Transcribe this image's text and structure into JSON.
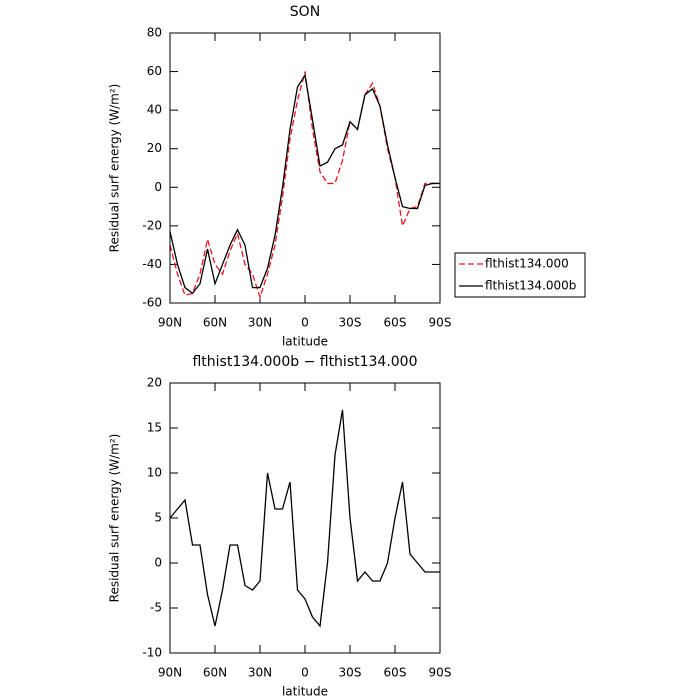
{
  "chart_data": [
    {
      "type": "line",
      "title": "SON",
      "xlabel": "latitude",
      "ylabel": "Residual surf energy (W/m²)",
      "x": [
        90,
        85,
        80,
        75,
        70,
        65,
        60,
        55,
        50,
        45,
        40,
        35,
        30,
        25,
        20,
        15,
        10,
        5,
        0,
        -5,
        -10,
        -15,
        -20,
        -25,
        -30,
        -35,
        -40,
        -45,
        -50,
        -55,
        -60,
        -65,
        -70,
        -75,
        -80,
        -85,
        -90
      ],
      "series": [
        {
          "name": "flthist134.000",
          "color": "#e8141c",
          "linestyle": "dashed",
          "values": [
            -30,
            -45,
            -56,
            -55,
            -45,
            -27,
            -40,
            -45,
            -33,
            -24,
            -40,
            -45,
            -57,
            -45,
            -30,
            -5,
            25,
            45,
            60,
            30,
            8,
            2,
            2,
            14,
            34,
            30,
            48,
            54,
            42,
            20,
            5,
            -20,
            -11,
            -10,
            2,
            2,
            2
          ]
        },
        {
          "name": "flthist134.000b",
          "color": "#000000",
          "linestyle": "solid",
          "values": [
            -23,
            -40,
            -52,
            -55,
            -50,
            -32,
            -50,
            -40,
            -30,
            -22,
            -30,
            -52,
            -52,
            -42,
            -25,
            0,
            30,
            52,
            58,
            35,
            11,
            13,
            20,
            22,
            34,
            30,
            48,
            51,
            42,
            22,
            5,
            -10,
            -11,
            -11,
            1,
            2,
            2
          ]
        }
      ],
      "xlim": [
        90,
        -90
      ],
      "xticks": [
        {
          "value": 90,
          "label": "90N"
        },
        {
          "value": 60,
          "label": "60N"
        },
        {
          "value": 30,
          "label": "30N"
        },
        0,
        {
          "value": -30,
          "label": "30S"
        },
        {
          "value": -60,
          "label": "60S"
        },
        {
          "value": -90,
          "label": "90S"
        }
      ],
      "ylim": [
        -60,
        80
      ],
      "yticks": [
        -60,
        -40,
        -20,
        0,
        20,
        40,
        60,
        80
      ],
      "legend": "right"
    },
    {
      "type": "line",
      "title": "flthist134.000b − flthist134.000",
      "xlabel": "latitude",
      "ylabel": "Residual surf energy (W/m²)",
      "x": [
        90,
        85,
        80,
        75,
        70,
        65,
        60,
        55,
        50,
        45,
        40,
        35,
        30,
        25,
        20,
        15,
        10,
        5,
        0,
        -5,
        -10,
        -15,
        -20,
        -25,
        -30,
        -35,
        -40,
        -45,
        -50,
        -55,
        -60,
        -65,
        -70,
        -75,
        -80,
        -85,
        -90
      ],
      "series": [
        {
          "color": "#000000",
          "linestyle": "solid",
          "values": [
            5,
            6,
            7,
            2,
            2,
            -3.5,
            -7,
            -3,
            2,
            2,
            -2.5,
            -3,
            -2,
            10,
            6,
            6,
            9,
            -3,
            -4,
            -6,
            -7,
            0,
            12,
            17,
            5,
            -2,
            -1,
            -2,
            -2,
            0,
            5,
            9,
            1,
            0,
            -1,
            -1,
            -1
          ]
        }
      ],
      "xlim": [
        90,
        -90
      ],
      "xticks": [
        {
          "value": 90,
          "label": "90N"
        },
        {
          "value": 60,
          "label": "60N"
        },
        {
          "value": 30,
          "label": "30N"
        },
        0,
        {
          "value": -30,
          "label": "30S"
        },
        {
          "value": -60,
          "label": "60S"
        },
        {
          "value": -90,
          "label": "90S"
        }
      ],
      "ylim": [
        -10,
        20
      ],
      "yticks": [
        -10,
        -5,
        0,
        5,
        10,
        15,
        20
      ]
    }
  ]
}
